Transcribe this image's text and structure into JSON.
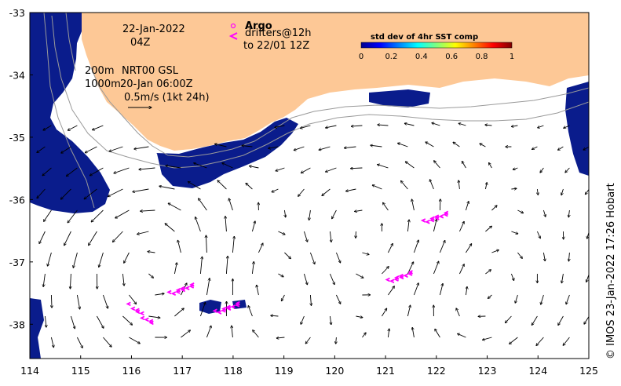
{
  "map": {
    "date_label": "22-Jan-2022",
    "time_label": "04Z",
    "legend_argo": "Argo",
    "legend_drifters": "drifters@12h",
    "legend_drifters_to": "to 22/01 12Z",
    "contour_200": "200m",
    "contour_1000": "1000m",
    "product": "NRT00 GSL",
    "product_time": "20-Jan 06:00Z",
    "scale_text": "0.5m/s (1kt 24h)",
    "colorbar_title": "std dev of 4hr SST comp",
    "colorbar_ticks": [
      "0",
      "0.2",
      "0.4",
      "0.6",
      "0.8",
      "1"
    ],
    "credit": "© IMOS 23-Jan-2022 17:26 Hobart",
    "lon_ticks": [
      "114",
      "115",
      "116",
      "117",
      "118",
      "119",
      "120",
      "121",
      "122",
      "123",
      "124",
      "125"
    ],
    "lat_ticks": [
      "-33",
      "-34",
      "-35",
      "-36",
      "-37",
      "-38"
    ],
    "colors": {
      "land": "#fdc896",
      "sst_mask": "#0a1c8c",
      "drifter": "#ff00ff",
      "isobath": "#9a9a9a"
    },
    "drifter_clusters": [
      {
        "lon": 116.2,
        "lat": -37.85
      },
      {
        "lon": 117.0,
        "lat": -37.45
      },
      {
        "lon": 117.9,
        "lat": -37.75
      },
      {
        "lon": 121.3,
        "lat": -37.25
      },
      {
        "lon": 122.0,
        "lat": -36.3
      }
    ]
  }
}
